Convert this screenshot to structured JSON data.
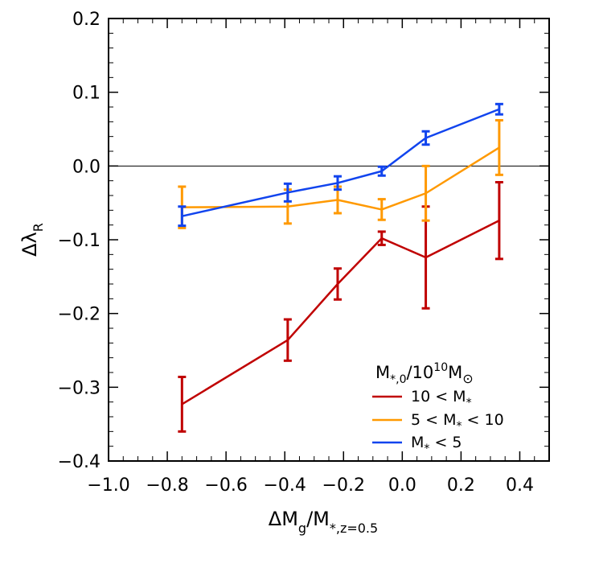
{
  "chart_data": {
    "type": "line",
    "xlabel": "ΔM_g/M_*,z=0.5",
    "ylabel": "Δλ_R",
    "xlim": [
      -1.0,
      0.5
    ],
    "ylim": [
      -0.4,
      0.2
    ],
    "xticks": [
      -1.0,
      -0.8,
      -0.6,
      -0.4,
      -0.2,
      0.0,
      0.2,
      0.4
    ],
    "yticks": [
      -0.4,
      -0.3,
      -0.2,
      -0.1,
      0.0,
      0.1,
      0.2
    ],
    "xtick_labels": [
      "−1.0",
      "−0.8",
      "−0.6",
      "−0.4",
      "−0.2",
      "0.0",
      "0.2",
      "0.4"
    ],
    "ytick_labels": [
      "−0.4",
      "−0.3",
      "−0.2",
      "−0.1",
      "0.0",
      "0.1",
      "0.2"
    ],
    "reference_line_y": 0.0,
    "legend": {
      "title": "M*,0/10^10 M⊙",
      "placement": "bottom-right"
    },
    "series": [
      {
        "name": "10 < M*",
        "color": "#c00000",
        "x": [
          -0.75,
          -0.39,
          -0.22,
          -0.07,
          0.08,
          0.33
        ],
        "y": [
          -0.323,
          -0.236,
          -0.16,
          -0.098,
          -0.124,
          -0.074
        ],
        "err": [
          0.037,
          0.028,
          0.021,
          0.009,
          0.069,
          0.052
        ]
      },
      {
        "name": "5 < M* < 10",
        "color": "#ff9900",
        "x": [
          -0.75,
          -0.39,
          -0.22,
          -0.07,
          0.08,
          0.33
        ],
        "y": [
          -0.056,
          -0.055,
          -0.046,
          -0.059,
          -0.037,
          0.025
        ],
        "err": [
          0.028,
          0.023,
          0.018,
          0.014,
          0.037,
          0.037
        ]
      },
      {
        "name": "M* < 5",
        "color": "#1144ee",
        "x": [
          -0.75,
          -0.39,
          -0.22,
          -0.07,
          0.08,
          0.33
        ],
        "y": [
          -0.068,
          -0.036,
          -0.023,
          -0.007,
          0.038,
          0.077
        ],
        "err": [
          0.013,
          0.012,
          0.009,
          0.006,
          0.009,
          0.007
        ]
      }
    ]
  }
}
